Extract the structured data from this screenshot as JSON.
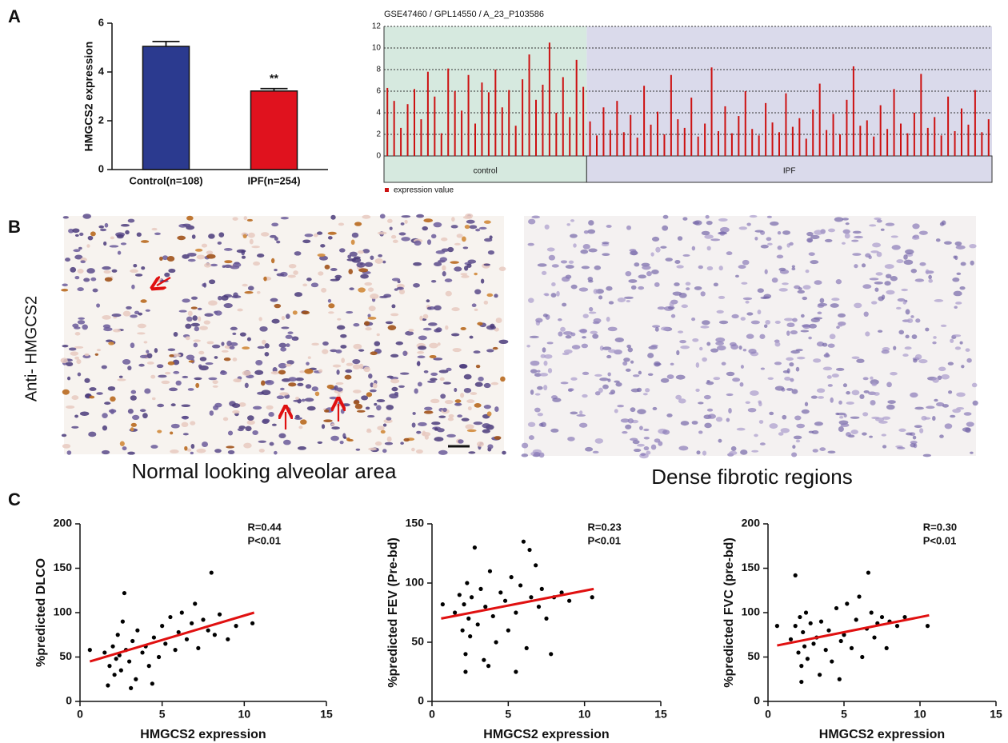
{
  "figure": {
    "panels": [
      "A",
      "B",
      "C"
    ],
    "stain_label": "Anti- HMGCS2",
    "image_captions": [
      "Normal looking alveolar area",
      "Dense fibrotic regions"
    ]
  },
  "chart_data": [
    {
      "type": "bar",
      "ylabel": "HMGCS2 expression",
      "categories": [
        "Control(n=108)",
        "IPF(n=254)"
      ],
      "values": [
        5.05,
        3.22
      ],
      "errors": [
        0.2,
        0.1
      ],
      "colors": [
        "#2b3a8f",
        "#e0121e"
      ],
      "ylim": [
        0,
        6
      ],
      "yticks": [
        0,
        2,
        4,
        6
      ],
      "annotations": [
        {
          "text": "**",
          "category": "IPF(n=254)"
        }
      ]
    },
    {
      "type": "profile",
      "title": "GSE47460 / GPL14550 / A_23_P103586",
      "legend": "expression value",
      "color": "#cc1111",
      "ylim": [
        0,
        12
      ],
      "yticks": [
        0,
        2,
        4,
        6,
        8,
        10,
        12
      ],
      "grid": true,
      "groups": [
        {
          "label": "control",
          "color": "#d6e9df",
          "values": [
            6.3,
            5.1,
            2.6,
            4.8,
            6.2,
            3.4,
            7.8,
            5.5,
            2.1,
            8.1,
            6.0,
            4.2,
            7.5,
            3.0,
            6.8,
            5.9,
            8.0,
            4.5,
            6.1,
            2.8,
            7.1,
            9.4,
            5.2,
            6.6,
            10.5,
            4.0,
            7.3,
            3.6,
            8.9,
            6.4
          ]
        },
        {
          "label": "IPF",
          "color": "#dadaeb",
          "values": [
            3.2,
            1.9,
            4.5,
            2.4,
            5.1,
            2.2,
            3.8,
            1.7,
            6.5,
            2.9,
            4.1,
            2.0,
            7.5,
            3.4,
            2.6,
            5.4,
            1.8,
            3.0,
            8.2,
            2.3,
            4.6,
            2.1,
            3.7,
            6.0,
            2.5,
            1.9,
            4.9,
            3.1,
            2.2,
            5.8,
            2.7,
            3.5,
            1.6,
            4.3,
            6.7,
            2.4,
            3.9,
            2.0,
            5.2,
            8.3,
            2.8,
            3.3,
            1.8,
            4.7,
            2.5,
            6.2,
            3.0,
            2.1,
            4.0,
            7.6,
            2.6,
            3.6,
            1.9,
            5.5,
            2.3,
            4.4,
            2.9,
            6.1,
            2.2,
            3.4
          ]
        }
      ]
    },
    {
      "type": "scatter",
      "xlabel": "HMGCS2 expression",
      "ylabel": "%predicted DLCO",
      "xlim": [
        0,
        15
      ],
      "xticks": [
        0,
        5,
        10,
        15
      ],
      "ylim": [
        0,
        200
      ],
      "yticks": [
        0,
        50,
        100,
        150,
        200
      ],
      "annotations": [
        "R=0.44",
        "P<0.01"
      ],
      "fit": {
        "x": [
          0.6,
          10.6
        ],
        "y": [
          45,
          100
        ]
      },
      "x": [
        1.5,
        1.8,
        2,
        2.1,
        2.2,
        2.3,
        2.4,
        2.5,
        2.6,
        2.8,
        3,
        3.2,
        3.4,
        3.5,
        3.8,
        4,
        4.2,
        4.5,
        4.8,
        5,
        5.2,
        5.5,
        5.8,
        6,
        6.2,
        6.5,
        6.8,
        7,
        7.2,
        7.5,
        7.8,
        8,
        8.2,
        8.5,
        9,
        9.5,
        10.5,
        2.7,
        1.7,
        3.1,
        0.6,
        4.4
      ],
      "y": [
        55,
        40,
        62,
        30,
        48,
        75,
        52,
        35,
        90,
        58,
        45,
        68,
        25,
        80,
        55,
        62,
        40,
        72,
        50,
        85,
        65,
        95,
        58,
        78,
        100,
        70,
        88,
        110,
        60,
        92,
        80,
        145,
        75,
        98,
        70,
        85,
        88,
        122,
        18,
        15,
        58,
        20
      ]
    },
    {
      "type": "scatter",
      "xlabel": "HMGCS2 expression",
      "ylabel": "%predicted FEV (Pre-bd)",
      "xlim": [
        0,
        15
      ],
      "xticks": [
        0,
        5,
        10,
        15
      ],
      "ylim": [
        0,
        150
      ],
      "yticks": [
        0,
        50,
        100,
        150
      ],
      "annotations": [
        "R=0.23",
        "P<0.01"
      ],
      "fit": {
        "x": [
          0.6,
          10.6
        ],
        "y": [
          70,
          95
        ]
      },
      "x": [
        1.5,
        1.8,
        2,
        2.1,
        2.2,
        2.3,
        2.4,
        2.5,
        2.6,
        2.8,
        3,
        3.2,
        3.4,
        3.5,
        3.8,
        4,
        4.2,
        4.5,
        4.8,
        5,
        5.2,
        5.5,
        5.8,
        6,
        6.2,
        6.5,
        6.8,
        7,
        7.2,
        7.5,
        7.8,
        8,
        8.5,
        9,
        10.5,
        2.2,
        5.5,
        0.7,
        3.7,
        6.4
      ],
      "y": [
        75,
        90,
        60,
        82,
        40,
        100,
        70,
        55,
        88,
        130,
        65,
        95,
        35,
        80,
        110,
        72,
        50,
        92,
        85,
        60,
        105,
        75,
        98,
        135,
        45,
        88,
        115,
        80,
        95,
        70,
        40,
        88,
        92,
        85,
        88,
        25,
        25,
        82,
        30,
        128
      ]
    },
    {
      "type": "scatter",
      "xlabel": "HMGCS2 expression",
      "ylabel": "%predicted FVC (pre-bd)",
      "xlim": [
        0,
        15
      ],
      "xticks": [
        0,
        5,
        10,
        15
      ],
      "ylim": [
        0,
        200
      ],
      "yticks": [
        0,
        50,
        100,
        150,
        200
      ],
      "annotations": [
        "R=0.30",
        "P<0.01"
      ],
      "fit": {
        "x": [
          0.6,
          10.6
        ],
        "y": [
          63,
          97
        ]
      },
      "x": [
        1.5,
        1.8,
        2,
        2.1,
        2.2,
        2.3,
        2.4,
        2.5,
        2.6,
        2.8,
        3,
        3.2,
        3.4,
        3.5,
        3.8,
        4,
        4.2,
        4.5,
        4.8,
        5,
        5.2,
        5.5,
        5.8,
        6,
        6.2,
        6.5,
        6.8,
        7,
        7.2,
        7.5,
        7.8,
        8,
        8.5,
        9,
        10.5,
        2.2,
        1.8,
        0.6,
        4.7,
        6.6
      ],
      "y": [
        70,
        85,
        55,
        95,
        40,
        78,
        62,
        100,
        48,
        88,
        65,
        72,
        30,
        90,
        58,
        80,
        45,
        105,
        68,
        75,
        110,
        60,
        92,
        118,
        50,
        82,
        100,
        72,
        88,
        95,
        60,
        90,
        85,
        95,
        85,
        22,
        142,
        85,
        25,
        145
      ]
    }
  ]
}
